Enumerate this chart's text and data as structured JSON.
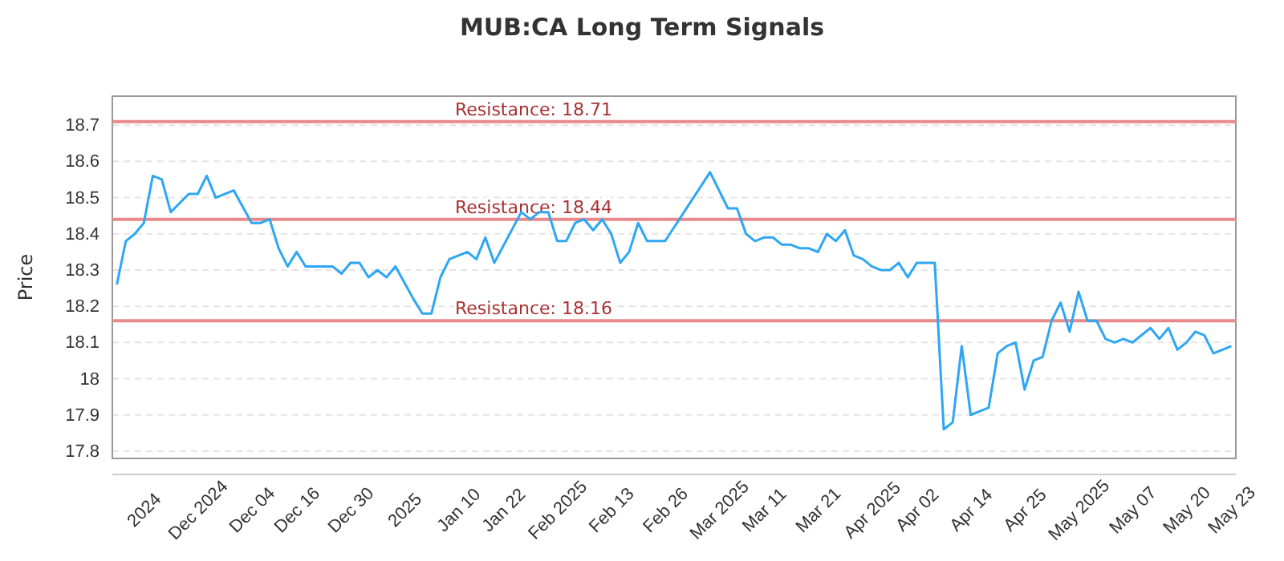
{
  "chart_data": {
    "type": "line",
    "title": "MUB:CA Long Term Signals",
    "ylabel": "Price",
    "categories": [
      null,
      null,
      null,
      "2024",
      null,
      null,
      null,
      null,
      null,
      "Dec 2024",
      null,
      null,
      null,
      null,
      null,
      "Dec 04",
      null,
      null,
      null,
      null,
      "Dec 16",
      null,
      null,
      null,
      null,
      null,
      "Dec 30",
      null,
      null,
      null,
      null,
      null,
      "2025",
      null,
      null,
      null,
      null,
      null,
      "Jan 10",
      null,
      null,
      null,
      null,
      "Jan 22",
      null,
      null,
      null,
      null,
      null,
      "Feb 2025",
      null,
      null,
      null,
      null,
      null,
      "Feb 13",
      null,
      null,
      null,
      null,
      null,
      "Feb 26",
      null,
      null,
      null,
      null,
      null,
      "Mar 2025",
      null,
      null,
      null,
      null,
      "Mar 11",
      null,
      null,
      null,
      null,
      null,
      "Mar 21",
      null,
      null,
      null,
      null,
      null,
      "Apr 2025",
      null,
      null,
      null,
      null,
      "Apr 02",
      null,
      null,
      null,
      null,
      null,
      "Apr 14",
      null,
      null,
      null,
      null,
      null,
      "Apr 25",
      null,
      null,
      null,
      null,
      null,
      "May 2025",
      null,
      null,
      null,
      null,
      null,
      "May 07",
      null,
      null,
      null,
      null,
      null,
      "May 20",
      null,
      null,
      null,
      null,
      "May 23"
    ],
    "series": [
      {
        "color": "#2ea6f3",
        "values": [
          18.26,
          18.38,
          18.4,
          18.43,
          18.56,
          18.55,
          18.46,
          null,
          18.51,
          18.51,
          18.56,
          18.5,
          null,
          18.52,
          null,
          18.43,
          18.43,
          18.44,
          18.36,
          18.31,
          18.35,
          18.31,
          18.31,
          null,
          18.31,
          18.29,
          18.32,
          18.32,
          18.28,
          18.3,
          18.28,
          18.31,
          null,
          18.22,
          18.18,
          18.18,
          18.28,
          18.33,
          18.34,
          18.35,
          18.33,
          18.39,
          18.32,
          null,
          null,
          18.46,
          18.44,
          18.46,
          18.46,
          18.38,
          18.38,
          18.43,
          18.44,
          18.41,
          18.44,
          18.4,
          18.32,
          18.35,
          18.43,
          18.38,
          null,
          18.38,
          null,
          null,
          null,
          null,
          18.57,
          null,
          18.47,
          18.47,
          18.4,
          18.38,
          18.39,
          18.39,
          18.37,
          18.37,
          18.36,
          18.36,
          18.35,
          18.4,
          18.38,
          18.41,
          18.34,
          18.33,
          18.31,
          18.3,
          18.3,
          18.32,
          18.28,
          18.32,
          null,
          18.32,
          17.86,
          17.88,
          18.09,
          17.9,
          null,
          17.92,
          18.07,
          18.09,
          18.1,
          17.97,
          18.05,
          18.06,
          18.16,
          18.21,
          18.13,
          18.24,
          18.16,
          18.16,
          18.11,
          18.1,
          18.11,
          18.1,
          null,
          18.14,
          18.11,
          18.14,
          18.08,
          18.1,
          18.13,
          18.12,
          18.07,
          null,
          18.09
        ]
      }
    ],
    "ylim": [
      17.78,
      18.78
    ],
    "yticks": [
      17.8,
      17.9,
      18.0,
      18.1,
      18.2,
      18.3,
      18.4,
      18.5,
      18.6,
      18.7
    ],
    "grid": "y",
    "line_style": "solid",
    "ref_lines": [
      {
        "axis": "y",
        "value": 18.71,
        "label": "Resistance: 18.71",
        "color": "#e88a8a"
      },
      {
        "axis": "y",
        "value": 18.44,
        "label": "Resistance: 18.44",
        "color": "#e88a8a"
      },
      {
        "axis": "y",
        "value": 18.16,
        "label": "Resistance: 18.16",
        "color": "#e88a8a"
      }
    ]
  }
}
